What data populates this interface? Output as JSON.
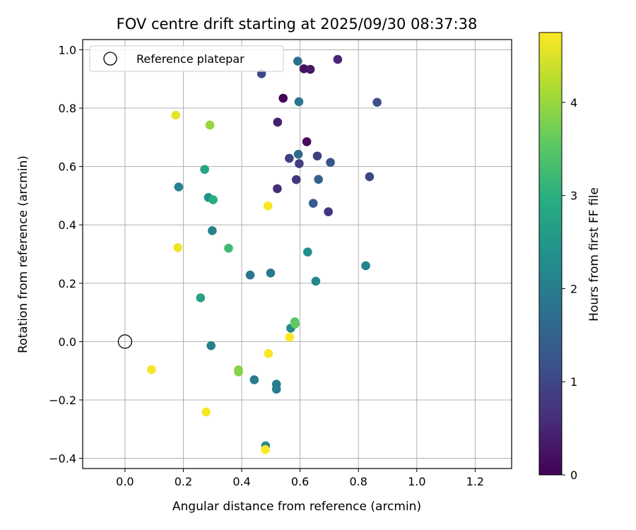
{
  "chart_data": {
    "type": "scatter",
    "title": "FOV centre drift starting at 2025/09/30 08:37:38",
    "xlabel": "Angular distance from reference (arcmin)",
    "ylabel": "Rotation from reference (arcmin)",
    "xlim": [
      -0.145,
      1.325
    ],
    "ylim": [
      -0.435,
      1.035
    ],
    "xticks": [
      0.0,
      0.2,
      0.4,
      0.6,
      0.8,
      1.0,
      1.2
    ],
    "xtick_labels": [
      "0.0",
      "0.2",
      "0.4",
      "0.6",
      "0.8",
      "1.0",
      "1.2"
    ],
    "yticks": [
      -0.4,
      -0.2,
      0.0,
      0.2,
      0.4,
      0.6,
      0.8,
      1.0
    ],
    "ytick_labels": [
      "−0.4",
      "−0.2",
      "0.0",
      "0.2",
      "0.4",
      "0.6",
      "0.8",
      "1.0"
    ],
    "grid": true,
    "legend": {
      "position": "top-left",
      "entries": [
        "Reference platepar"
      ]
    },
    "reference_point": {
      "x": 0.0,
      "y": 0.0,
      "label": "Reference platepar"
    },
    "colorbar": {
      "label": "Hours from first FF file",
      "colormap": "viridis",
      "range": [
        0,
        4.75
      ],
      "ticks": [
        0,
        1,
        2,
        3,
        4
      ],
      "tick_labels": [
        "0",
        "1",
        "2",
        "3",
        "4"
      ]
    },
    "points": [
      {
        "x": 0.542,
        "y": 0.834,
        "h": 0.05
      },
      {
        "x": 0.623,
        "y": 0.685,
        "h": 0.12
      },
      {
        "x": 0.613,
        "y": 0.935,
        "h": 0.22
      },
      {
        "x": 0.635,
        "y": 0.933,
        "h": 0.32
      },
      {
        "x": 0.523,
        "y": 0.752,
        "h": 0.42
      },
      {
        "x": 0.729,
        "y": 0.967,
        "h": 0.52
      },
      {
        "x": 0.522,
        "y": 0.524,
        "h": 0.62
      },
      {
        "x": 0.697,
        "y": 0.445,
        "h": 0.72
      },
      {
        "x": 0.587,
        "y": 0.555,
        "h": 0.78
      },
      {
        "x": 0.597,
        "y": 0.61,
        "h": 0.85
      },
      {
        "x": 0.659,
        "y": 0.636,
        "h": 0.88
      },
      {
        "x": 0.563,
        "y": 0.628,
        "h": 0.95
      },
      {
        "x": 0.468,
        "y": 0.918,
        "h": 1.02
      },
      {
        "x": 0.838,
        "y": 0.565,
        "h": 1.05
      },
      {
        "x": 0.864,
        "y": 0.82,
        "h": 1.15
      },
      {
        "x": 0.704,
        "y": 0.614,
        "h": 1.28
      },
      {
        "x": 0.645,
        "y": 0.474,
        "h": 1.38
      },
      {
        "x": 0.663,
        "y": 0.556,
        "h": 1.52
      },
      {
        "x": 0.594,
        "y": 0.642,
        "h": 1.65
      },
      {
        "x": 0.592,
        "y": 0.961,
        "h": 1.75
      },
      {
        "x": 0.596,
        "y": 0.822,
        "h": 1.85
      },
      {
        "x": 0.429,
        "y": 0.228,
        "h": 1.88
      },
      {
        "x": 0.499,
        "y": 0.235,
        "h": 1.92
      },
      {
        "x": 0.443,
        "y": -0.131,
        "h": 1.95
      },
      {
        "x": 0.519,
        "y": -0.146,
        "h": 2.0
      },
      {
        "x": 0.519,
        "y": -0.163,
        "h": 2.02
      },
      {
        "x": 0.295,
        "y": -0.014,
        "h": 2.05
      },
      {
        "x": 0.184,
        "y": 0.53,
        "h": 2.1
      },
      {
        "x": 0.299,
        "y": 0.38,
        "h": 2.12
      },
      {
        "x": 0.825,
        "y": 0.26,
        "h": 2.15
      },
      {
        "x": 0.654,
        "y": 0.207,
        "h": 2.2
      },
      {
        "x": 0.482,
        "y": -0.357,
        "h": 2.22
      },
      {
        "x": 0.568,
        "y": 0.046,
        "h": 2.3
      },
      {
        "x": 0.626,
        "y": 0.307,
        "h": 2.35
      },
      {
        "x": 0.286,
        "y": 0.494,
        "h": 2.4
      },
      {
        "x": 0.259,
        "y": 0.15,
        "h": 2.75
      },
      {
        "x": 0.273,
        "y": 0.59,
        "h": 2.8
      },
      {
        "x": 0.302,
        "y": 0.486,
        "h": 2.95
      },
      {
        "x": 0.355,
        "y": 0.32,
        "h": 3.25
      },
      {
        "x": 0.582,
        "y": 0.068,
        "h": 3.5
      },
      {
        "x": 0.583,
        "y": 0.06,
        "h": 3.6
      },
      {
        "x": 0.389,
        "y": -0.097,
        "h": 3.85
      },
      {
        "x": 0.389,
        "y": -0.104,
        "h": 3.9
      },
      {
        "x": 0.291,
        "y": 0.742,
        "h": 4.0
      },
      {
        "x": 0.174,
        "y": 0.776,
        "h": 4.6
      },
      {
        "x": 0.181,
        "y": 0.322,
        "h": 4.65
      },
      {
        "x": 0.091,
        "y": -0.096,
        "h": 4.7
      },
      {
        "x": 0.278,
        "y": -0.241,
        "h": 4.7
      },
      {
        "x": 0.49,
        "y": 0.465,
        "h": 4.72
      },
      {
        "x": 0.492,
        "y": -0.041,
        "h": 4.72
      },
      {
        "x": 0.564,
        "y": 0.015,
        "h": 4.75
      },
      {
        "x": 0.481,
        "y": -0.37,
        "h": 4.75
      }
    ]
  }
}
